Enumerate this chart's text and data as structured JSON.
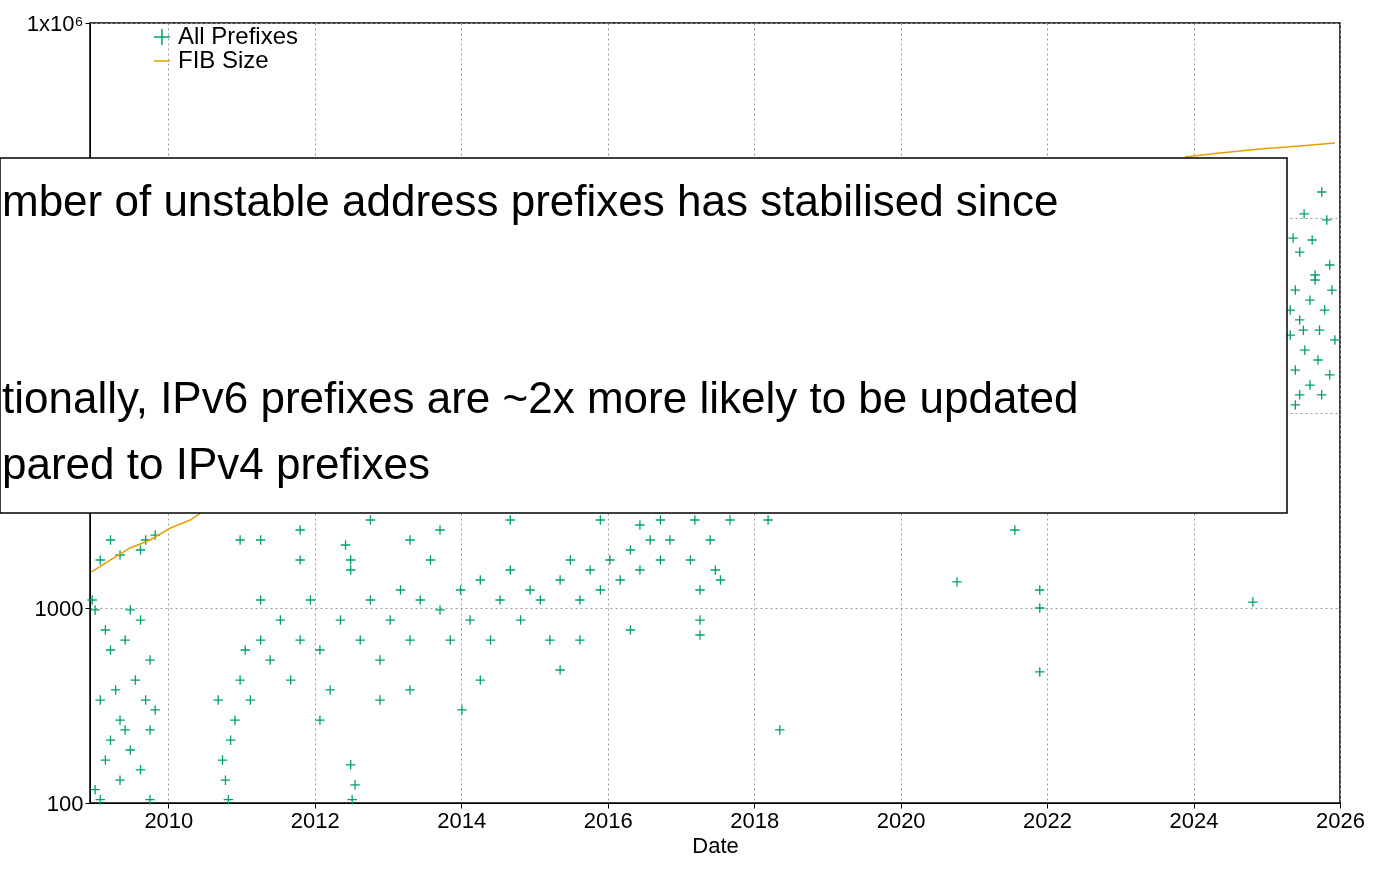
{
  "chart_data": {
    "type": "scatter",
    "xlabel": "Date",
    "log": true,
    "grid": true,
    "legend": "top left",
    "xlim": [
      2008.93,
      2026
    ],
    "xticks": [
      2010,
      2012,
      2014,
      2016,
      2018,
      2020,
      2022,
      2024,
      2026
    ],
    "ylim": [
      100,
      1000000
    ],
    "yticks": [
      100,
      1000,
      {
        "value": 10000,
        "label": null
      },
      {
        "value": 100000,
        "label": null
      },
      {
        "value": 1000000,
        "label": "1x10⁶"
      }
    ],
    "annotations": [
      "mber of unstable address prefixes has stabilised since",
      "tionally, IPv6 prefixes are ~2x more likely to be updated",
      "pared to IPv4 prefixes"
    ],
    "series": [
      {
        "name": "All Prefixes",
        "marker": "cross",
        "color": "#009e73",
        "x": [
          2009.0,
          2009.14,
          2009.21,
          2009.34,
          2009.48,
          2009.62,
          2009.75,
          2009.82,
          2009.07,
          2009.28,
          2009.41,
          2009.69,
          2009.55,
          2009.21,
          2009.41,
          2009.14,
          2009.62,
          2009.75,
          2009.0,
          2009.48,
          2009.07,
          2009.34,
          2009.62,
          2009.69,
          2009.82,
          2009.21,
          2009.07,
          2009.75,
          2009.34,
          2008.96,
          2010.68,
          2010.74,
          2010.78,
          2010.85,
          2010.91,
          2010.82,
          2010.98,
          2011.05,
          2011.12,
          2011.26,
          2011.39,
          2011.53,
          2011.67,
          2011.8,
          2011.94,
          2012.07,
          2012.21,
          2011.26,
          2011.8,
          2012.35,
          2012.49,
          2012.62,
          2012.76,
          2012.89,
          2013.03,
          2013.17,
          2013.3,
          2013.44,
          2013.58,
          2013.71,
          2013.85,
          2013.99,
          2014.12,
          2014.26,
          2014.4,
          2014.53,
          2014.67,
          2014.81,
          2014.94,
          2015.08,
          2015.21,
          2015.35,
          2015.49,
          2015.62,
          2015.76,
          2015.9,
          2016.03,
          2016.17,
          2016.31,
          2016.44,
          2016.58,
          2016.72,
          2016.85,
          2011.26,
          2010.98,
          2012.49,
          2013.3,
          2014.01,
          2012.49,
          2012.55,
          2012.51,
          2014.67,
          2015.9,
          2013.71,
          2012.89,
          2012.07,
          2013.3,
          2015.35,
          2017.26,
          2017.13,
          2017.4,
          2017.26,
          2017.47,
          2017.19,
          2017.54,
          2017.67,
          2018.19,
          2018.35,
          2017.26,
          2015.62,
          2016.31,
          2014.26,
          2016.72,
          2016.44,
          2012.76,
          2012.42,
          2011.8,
          2020.77,
          2021.56,
          2021.9,
          2021.9,
          2021.9,
          2024.81,
          2025.75,
          2025.51,
          2025.82,
          2025.36,
          2025.62,
          2025.45,
          2025.86,
          2025.66,
          2025.39,
          2025.59,
          2025.79,
          2025.45,
          2025.72,
          2025.32,
          2025.93,
          2025.52,
          2025.7,
          2025.39,
          2025.86,
          2025.59,
          2025.45,
          2025.75,
          2025.39,
          2025.66,
          2025.89,
          2025.32,
          2025.5
        ],
        "values": [
          117,
          166,
          210,
          266,
          187,
          148,
          237,
          300,
          337,
          380,
          237,
          337,
          427,
          609,
          685,
          771,
          867,
          541,
          977,
          977,
          1763,
          1870,
          1983,
          2232,
          2366,
          2232,
          104,
          104,
          131,
          1099,
          337,
          166,
          131,
          210,
          266,
          104,
          427,
          609,
          337,
          685,
          541,
          867,
          427,
          685,
          1099,
          609,
          380,
          1099,
          1763,
          867,
          1566,
          685,
          1099,
          541,
          867,
          1237,
          685,
          1099,
          1763,
          977,
          685,
          1237,
          867,
          1392,
          685,
          1099,
          1566,
          867,
          1237,
          1099,
          685,
          1392,
          1763,
          1099,
          1566,
          1237,
          1763,
          1392,
          1983,
          1566,
          2232,
          1763,
          2232,
          2232,
          2232,
          1763,
          2232,
          300,
          157,
          124,
          104,
          2826,
          2826,
          2512,
          337,
          266,
          380,
          481,
          1237,
          1763,
          2232,
          867,
          1566,
          2826,
          1392,
          2826,
          2826,
          237,
          727,
          685,
          771,
          427,
          2826,
          2665,
          2826,
          2104,
          2512,
          1360,
          2512,
          1237,
          1000,
          470,
          1073,
          135900,
          105000,
          97700,
          78900,
          77100,
          66900,
          57400,
          51000,
          42700,
          37900,
          33700,
          30000,
          26600,
          25100,
          23700,
          21000,
          18700,
          16600,
          15700,
          13900,
          12400,
          12400,
          11000,
          48100,
          42700,
          33700,
          26600
        ]
      },
      {
        "name": "FIB Size",
        "type": "line",
        "marker": "none",
        "color": "#e69f00",
        "x": [
          2008.95,
          2009.21,
          2009.48,
          2009.75,
          2010.03,
          2010.3,
          2010.44,
          2017.0,
          2023.88,
          2024.36,
          2024.91,
          2025.45,
          2025.93
        ],
        "values": [
          1530,
          1763,
          2032,
          2232,
          2573,
          2826,
          3070,
          null,
          205600,
          215400,
          225900,
          233900,
          242500
        ]
      }
    ]
  }
}
